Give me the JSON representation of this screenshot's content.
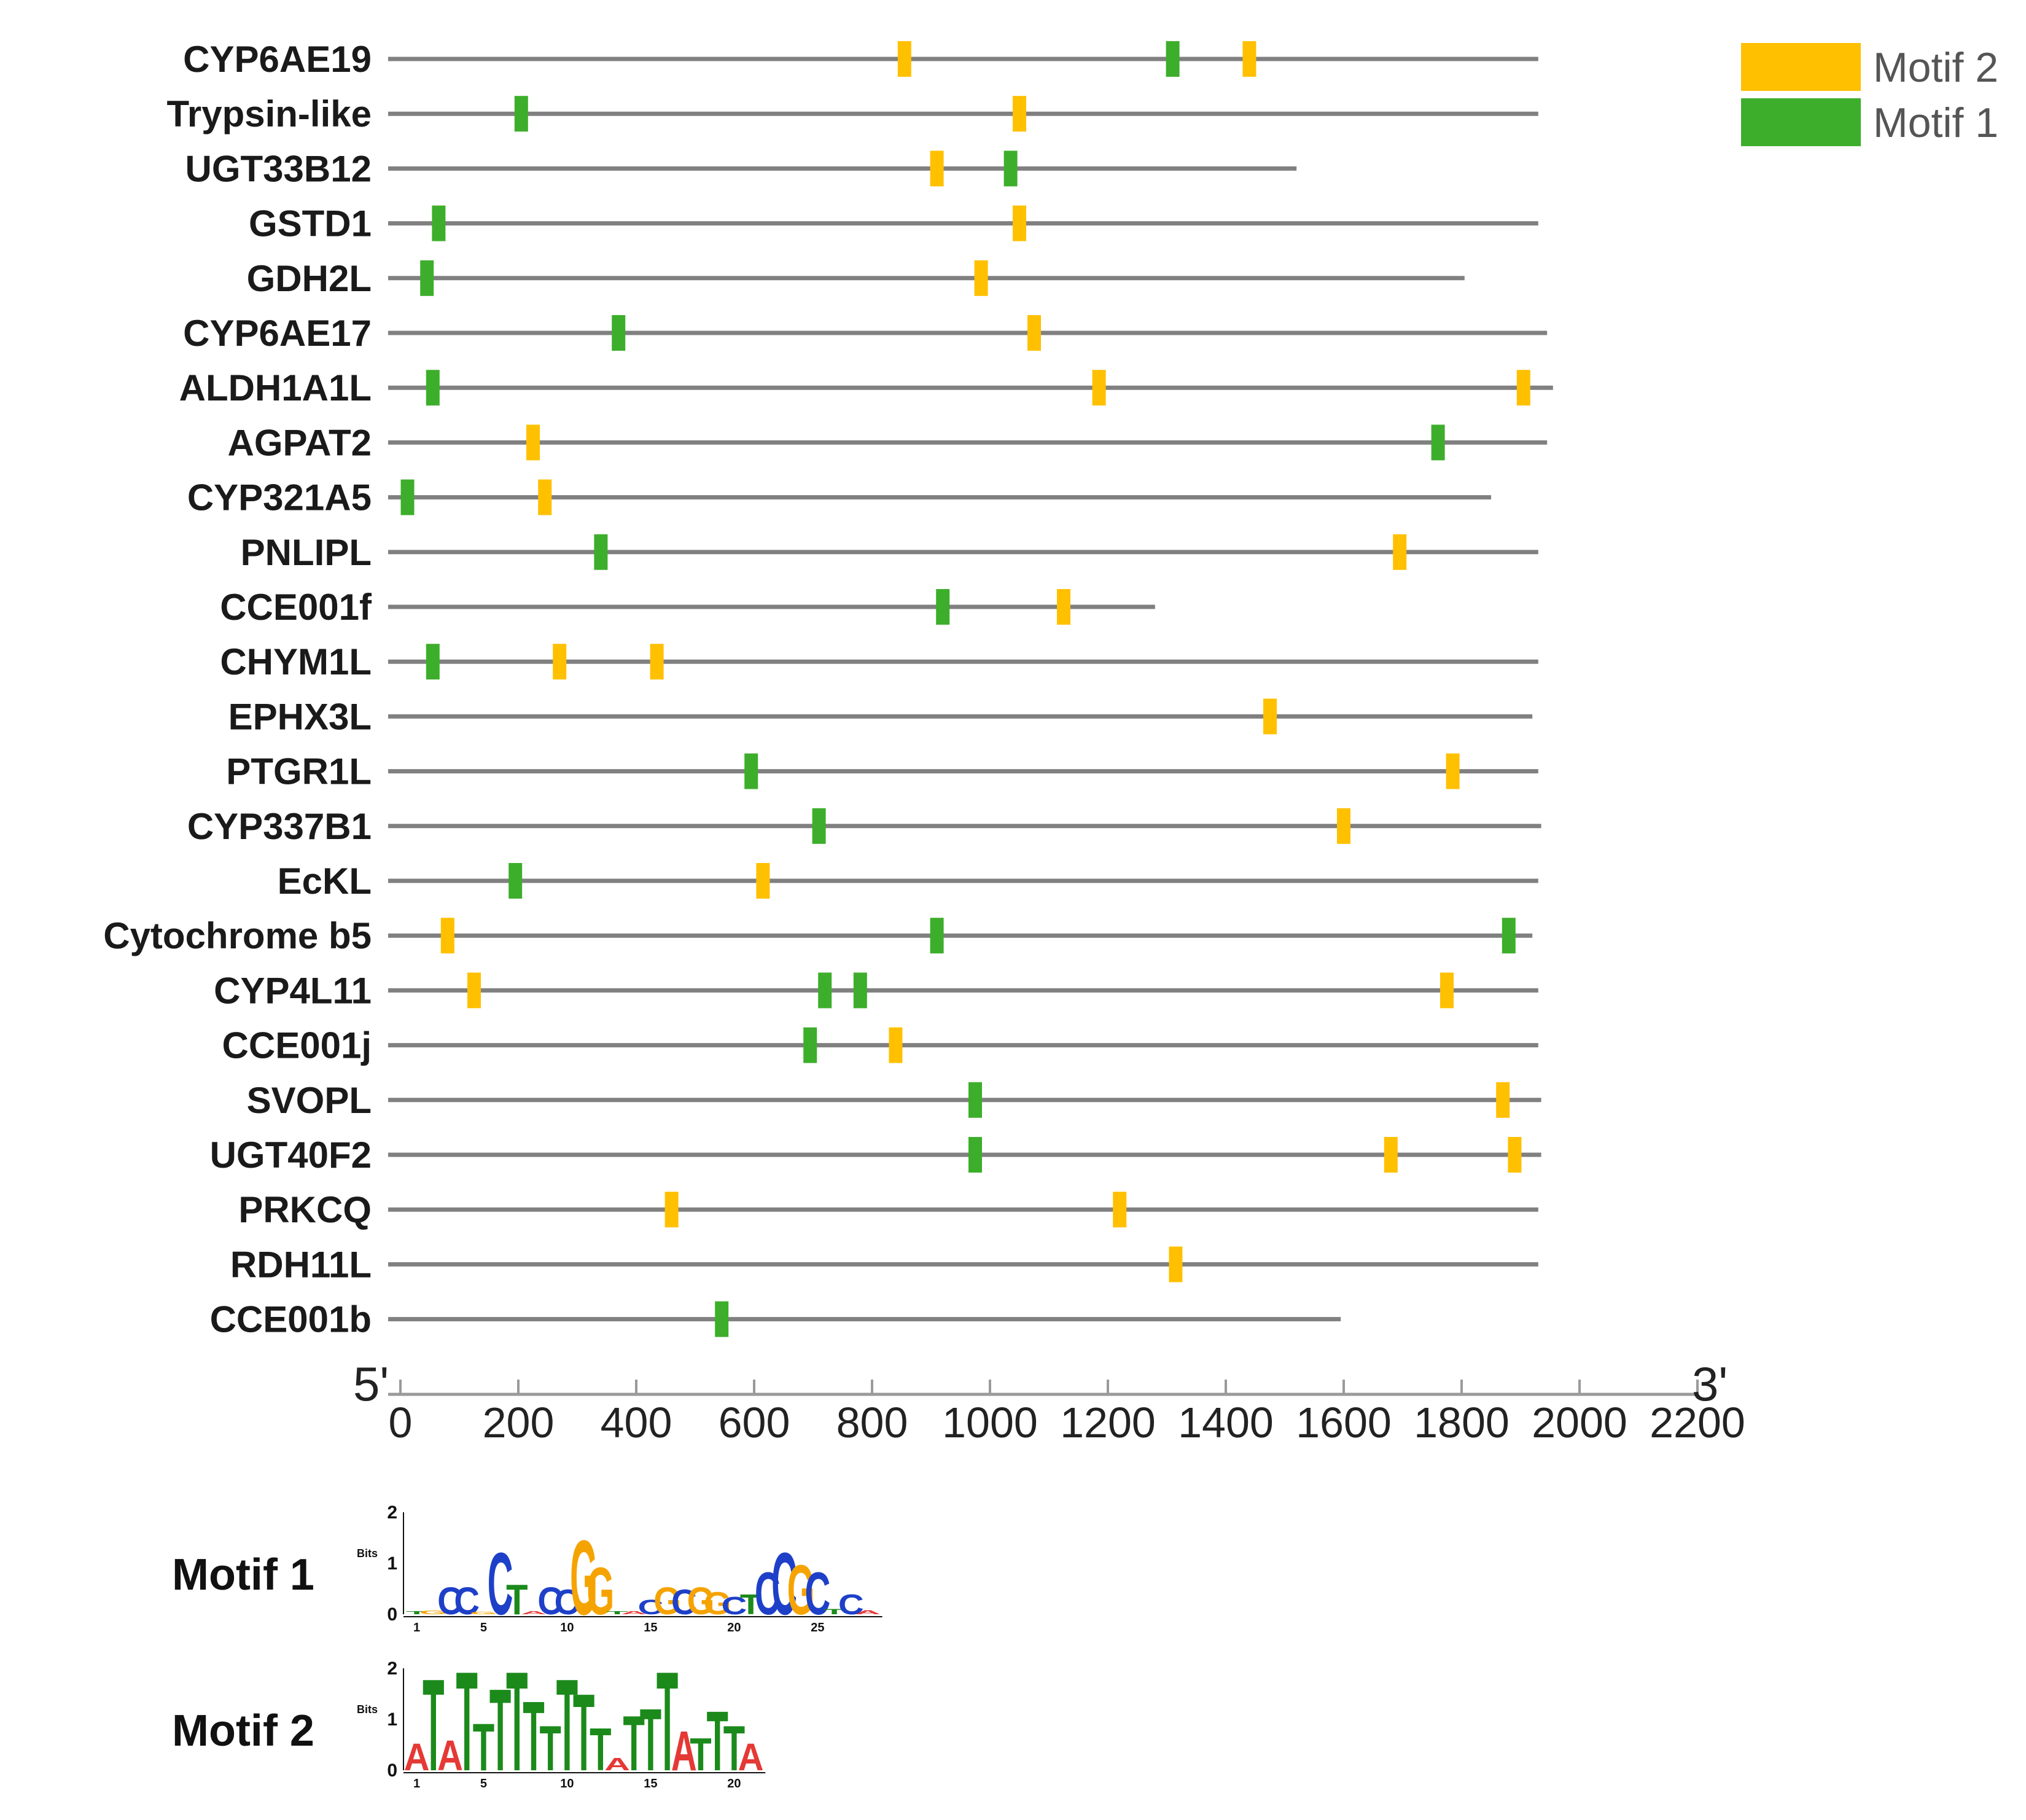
{
  "chart_data": {
    "type": "motif-map",
    "axis": {
      "xlim": [
        0,
        2200
      ],
      "ticks": [
        0,
        200,
        400,
        600,
        800,
        1000,
        1200,
        1400,
        1600,
        1800,
        2000,
        2200
      ],
      "tick_labels": [
        "0",
        "200",
        "400",
        "600",
        "800",
        "1000",
        "1200",
        "1400",
        "1600",
        "1800",
        "2000",
        "2200"
      ],
      "left_end": "5'",
      "right_end": "3'"
    },
    "legend": {
      "placement": "top-right",
      "items": [
        {
          "label": "Motif 2",
          "color": "#FFC000"
        },
        {
          "label": "Motif 1",
          "color": "#3DAE2B"
        }
      ]
    },
    "colors": {
      "motif1": "#3DAE2B",
      "motif2": "#FFC000",
      "line": "#808080"
    },
    "genes": [
      {
        "name": "CYP6AE19",
        "length": 1930,
        "motif1": [
          1310
        ],
        "motif2": [
          855,
          1440
        ]
      },
      {
        "name": "Trypsin-like",
        "length": 1930,
        "motif1": [
          205
        ],
        "motif2": [
          1050
        ]
      },
      {
        "name": "UGT33B12",
        "length": 1520,
        "motif1": [
          1035
        ],
        "motif2": [
          910
        ]
      },
      {
        "name": "GSTD1",
        "length": 1930,
        "motif1": [
          65
        ],
        "motif2": [
          1050
        ]
      },
      {
        "name": "GDH2L",
        "length": 1805,
        "motif1": [
          45
        ],
        "motif2": [
          985
        ]
      },
      {
        "name": "CYP6AE17",
        "length": 1945,
        "motif1": [
          370
        ],
        "motif2": [
          1075
        ]
      },
      {
        "name": "ALDH1A1L",
        "length": 1955,
        "motif1": [
          55
        ],
        "motif2": [
          1185,
          1905
        ]
      },
      {
        "name": "AGPAT2",
        "length": 1945,
        "motif1": [
          1760
        ],
        "motif2": [
          225
        ]
      },
      {
        "name": "CYP321A5",
        "length": 1850,
        "motif1": [
          12
        ],
        "motif2": [
          245
        ]
      },
      {
        "name": "PNLIPL",
        "length": 1930,
        "motif1": [
          340
        ],
        "motif2": [
          1695
        ]
      },
      {
        "name": "CCE001f",
        "length": 1280,
        "motif1": [
          920
        ],
        "motif2": [
          1125
        ]
      },
      {
        "name": "CHYM1L",
        "length": 1930,
        "motif1": [
          55
        ],
        "motif2": [
          270,
          435
        ]
      },
      {
        "name": "EPHX3L",
        "length": 1920,
        "motif1": [],
        "motif2": [
          1475
        ]
      },
      {
        "name": "PTGR1L",
        "length": 1930,
        "motif1": [
          595
        ],
        "motif2": [
          1785
        ]
      },
      {
        "name": "CYP337B1",
        "length": 1935,
        "motif1": [
          710
        ],
        "motif2": [
          1600
        ]
      },
      {
        "name": "EcKL",
        "length": 1930,
        "motif1": [
          195
        ],
        "motif2": [
          615
        ]
      },
      {
        "name": "Cytochrome b5",
        "length": 1920,
        "motif1": [
          910,
          1880
        ],
        "motif2": [
          80
        ]
      },
      {
        "name": "CYP4L11",
        "length": 1930,
        "motif1": [
          720,
          780
        ],
        "motif2": [
          125,
          1775
        ]
      },
      {
        "name": "CCE001j",
        "length": 1930,
        "motif1": [
          695
        ],
        "motif2": [
          840
        ]
      },
      {
        "name": "SVOPL",
        "length": 1935,
        "motif1": [
          975
        ],
        "motif2": [
          1870
        ]
      },
      {
        "name": "UGT40F2",
        "length": 1935,
        "motif1": [
          975
        ],
        "motif2": [
          1680,
          1890
        ]
      },
      {
        "name": "PRKCQ",
        "length": 1930,
        "motif1": [],
        "motif2": [
          460,
          1220
        ]
      },
      {
        "name": "RDH11L",
        "length": 1930,
        "motif1": [],
        "motif2": [
          1315
        ]
      },
      {
        "name": "CCE001b",
        "length": 1595,
        "motif1": [
          545
        ],
        "motif2": []
      }
    ],
    "logos": [
      {
        "title": "Motif 1",
        "ylabel": "Bits",
        "yticks": [
          "0",
          "1",
          "2"
        ],
        "ymax": 2,
        "xticks": [
          "1",
          "5",
          "10",
          "15",
          "20",
          "25"
        ],
        "xtick_positions": [
          1,
          5,
          10,
          15,
          20,
          25
        ],
        "columns": [
          {
            "l": "T",
            "h": 0.06
          },
          {
            "l": "G",
            "h": 0.07
          },
          {
            "l": "C",
            "h": 0.55
          },
          {
            "l": "C",
            "h": 0.55
          },
          {
            "l": "G",
            "h": 0.05
          },
          {
            "l": "C",
            "h": 1.25
          },
          {
            "l": "T",
            "h": 0.6
          },
          {
            "l": "A",
            "h": 0.06
          },
          {
            "l": "C",
            "h": 0.55
          },
          {
            "l": "C",
            "h": 0.5
          },
          {
            "l": "G",
            "h": 1.5
          },
          {
            "l": "G",
            "h": 0.95
          },
          {
            "l": "T",
            "h": 0.06
          },
          {
            "l": "A",
            "h": 0.06
          },
          {
            "l": "C",
            "h": 0.3
          },
          {
            "l": "G",
            "h": 0.55
          },
          {
            "l": "C",
            "h": 0.5
          },
          {
            "l": "G",
            "h": 0.55
          },
          {
            "l": "G",
            "h": 0.45
          },
          {
            "l": "C",
            "h": 0.35
          },
          {
            "l": "T",
            "h": 0.4
          },
          {
            "l": "C",
            "h": 0.85
          },
          {
            "l": "C",
            "h": 1.25
          },
          {
            "l": "G",
            "h": 1.0
          },
          {
            "l": "C",
            "h": 0.85
          },
          {
            "l": "T",
            "h": 0.1
          },
          {
            "l": "C",
            "h": 0.4
          },
          {
            "l": "A",
            "h": 0.08
          }
        ]
      },
      {
        "title": "Motif 2",
        "ylabel": "Bits",
        "yticks": [
          "0",
          "1",
          "2"
        ],
        "ymax": 2,
        "xticks": [
          "1",
          "5",
          "10",
          "15",
          "20"
        ],
        "xtick_positions": [
          1,
          5,
          10,
          15,
          20
        ],
        "columns": [
          {
            "l": "A",
            "h": 0.55
          },
          {
            "l": "T",
            "h": 1.85
          },
          {
            "l": "A",
            "h": 0.6
          },
          {
            "l": "T",
            "h": 2.0
          },
          {
            "l": "T",
            "h": 0.95
          },
          {
            "l": "T",
            "h": 1.65
          },
          {
            "l": "T",
            "h": 2.0
          },
          {
            "l": "T",
            "h": 1.4
          },
          {
            "l": "T",
            "h": 0.9
          },
          {
            "l": "T",
            "h": 1.85
          },
          {
            "l": "T",
            "h": 1.55
          },
          {
            "l": "T",
            "h": 0.85
          },
          {
            "l": "A",
            "h": 0.25
          },
          {
            "l": "T",
            "h": 1.1
          },
          {
            "l": "T",
            "h": 1.25
          },
          {
            "l": "T",
            "h": 2.0
          },
          {
            "l": "A",
            "h": 0.8
          },
          {
            "l": "T",
            "h": 0.65
          },
          {
            "l": "T",
            "h": 1.2
          },
          {
            "l": "T",
            "h": 0.9
          },
          {
            "l": "A",
            "h": 0.55
          }
        ]
      }
    ]
  }
}
